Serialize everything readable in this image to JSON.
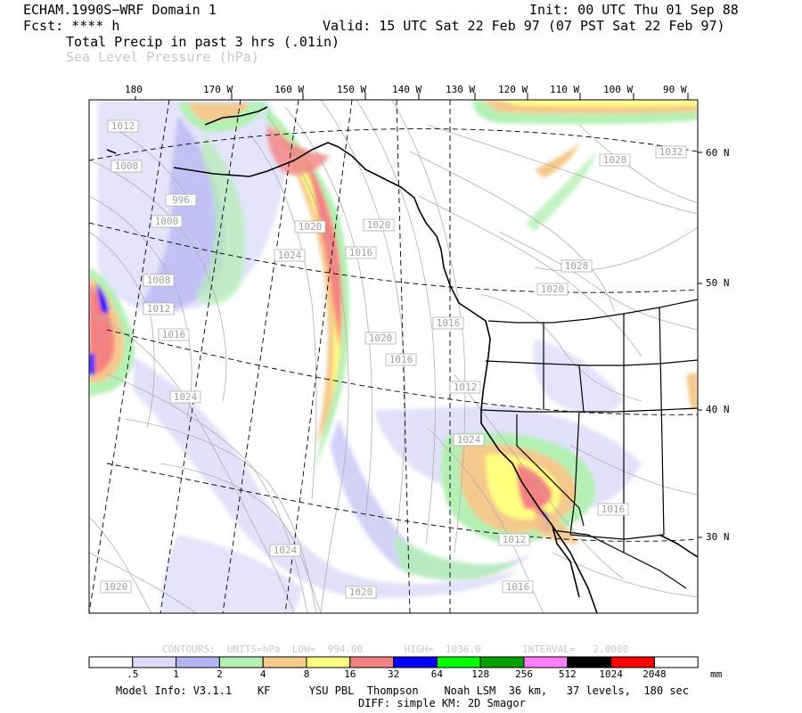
{
  "header": {
    "model_title": "ECHAM.1990S−WRF Domain 1",
    "init_time": "Init: 00 UTC Thu 01 Sep 88",
    "forecast": "Fcst: **** h",
    "valid_time": "Valid: 15 UTC Sat 22 Feb 97 (07 PST Sat 22 Feb 97)",
    "field_primary": "Total Precip in past 3 hrs (.01in)",
    "field_secondary": "Sea Level Pressure (hPa)"
  },
  "longitude_labels": [
    "180",
    "170 W",
    "160 W",
    "150 W",
    "140 W",
    "130 W",
    "120 W",
    "110 W",
    "100 W",
    "90 W"
  ],
  "latitude_labels": [
    "60 N",
    "50 N",
    "40 N",
    "30 N"
  ],
  "pressure_labels": [
    "1012",
    "1008",
    "996",
    "1000",
    "1008",
    "1012",
    "1016",
    "1024",
    "1024",
    "1020",
    "1024",
    "1020",
    "1016",
    "1020",
    "1020",
    "1016",
    "1016",
    "1012",
    "1028",
    "1020",
    "1028",
    "1032",
    "1016",
    "1012",
    "1016",
    "1024",
    "1020"
  ],
  "contour_info": {
    "contours": "CONTOURS:",
    "units": "UNITS=hPa",
    "low": "LOW=  994.00",
    "high": "HIGH=  1036.0",
    "interval": "INTERVAL=   2.0000"
  },
  "colorbar": {
    "unit": "mm",
    "colors": [
      "#ffffff",
      "#dcdcf8",
      "#b4b4f5",
      "#b4f0b4",
      "#f5c88c",
      "#ffff7f",
      "#f58282",
      "#0000ff",
      "#00ff00",
      "#00a000",
      "#ff80ff",
      "#000000",
      "#ff0000",
      "#ffffff"
    ],
    "labels": [
      ".5",
      "1",
      "2",
      "4",
      "8",
      "16",
      "32",
      "64",
      "128",
      "256",
      "512",
      "1024",
      "2048"
    ]
  },
  "footer": {
    "line1": "Model Info: V3.1.1    KF      YSU PBL  Thompson    Noah LSM  36 km,   37 levels,  180 sec",
    "line2": "DIFF: simple KM: 2D Smagor"
  }
}
